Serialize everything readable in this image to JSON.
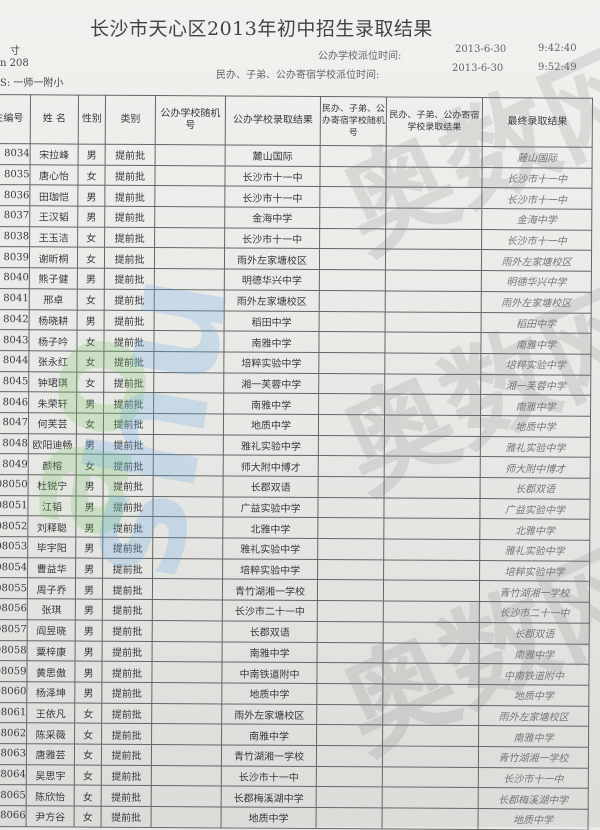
{
  "document": {
    "title": "长沙市天心区2013年初中招生录取结果",
    "fragments": [
      "寸",
      "n  208",
      "S: 一师一附小"
    ],
    "public_time_label": "公办学校派位时间:",
    "public_time_date": "2013-6-30",
    "public_time_clock": "9:42:40",
    "private_time_label": "民办、子弟、公办寄宿学校派位时间:",
    "private_time_date": "2013-6-30",
    "private_time_clock": "9:52:49"
  },
  "watermarks": [
    "ao",
    "shu",
    "奥数网",
    "奥数网",
    "奥数网"
  ],
  "table": {
    "headers": [
      "生编号",
      "姓 名",
      "性别",
      "类别",
      "公办学校随机号",
      "公办学校录取结果",
      "民办、子弟、公办寄宿学校随机号",
      "民办、子弟、公办寄宿学校录取结果",
      "最终录取结果"
    ],
    "rows": [
      [
        "8034",
        "宋拉峰",
        "男",
        "提前批",
        "",
        "麓山国际",
        "",
        "",
        "麓山国际"
      ],
      [
        "8035",
        "唐心怡",
        "女",
        "提前批",
        "",
        "长沙市十一中",
        "",
        "",
        "长沙市十一中"
      ],
      [
        "8036",
        "田珈恺",
        "男",
        "提前批",
        "",
        "长沙市十一中",
        "",
        "",
        "长沙市十一中"
      ],
      [
        "8037",
        "王汉韬",
        "男",
        "提前批",
        "",
        "金海中学",
        "",
        "",
        "金海中学"
      ],
      [
        "8038",
        "王玉洁",
        "女",
        "提前批",
        "",
        "长沙市十一中",
        "",
        "",
        "长沙市十一中"
      ],
      [
        "8039",
        "谢昕桐",
        "女",
        "提前批",
        "",
        "雨外左家塘校区",
        "",
        "",
        "雨外左家塘校区"
      ],
      [
        "8040",
        "熊子健",
        "男",
        "提前批",
        "",
        "明德华兴中学",
        "",
        "",
        "明德华兴中学"
      ],
      [
        "8041",
        "邢卓",
        "女",
        "提前批",
        "",
        "雨外左家塘校区",
        "",
        "",
        "雨外左家塘校区"
      ],
      [
        "8042",
        "杨晓耕",
        "男",
        "提前批",
        "",
        "稻田中学",
        "",
        "",
        "稻田中学"
      ],
      [
        "8043",
        "杨子吟",
        "女",
        "提前批",
        "",
        "南雅中学",
        "",
        "",
        "南雅中学"
      ],
      [
        "8044",
        "张永红",
        "女",
        "提前批",
        "",
        "培粹实验中学",
        "",
        "",
        "培粹实验中学"
      ],
      [
        "8045",
        "钟珺琪",
        "女",
        "提前批",
        "",
        "湘一芙蓉中学",
        "",
        "",
        "湘一芙蓉中学"
      ],
      [
        "8046",
        "朱荣轩",
        "男",
        "提前批",
        "",
        "南雅中学",
        "",
        "",
        "南雅中学"
      ],
      [
        "8047",
        "何芙芸",
        "女",
        "提前批",
        "",
        "地质中学",
        "",
        "",
        "地质中学"
      ],
      [
        "8048",
        "欧阳迪畅",
        "男",
        "提前批",
        "",
        "雅礼实验中学",
        "",
        "",
        "雅礼实验中学"
      ],
      [
        "8049",
        "颜榕",
        "女",
        "提前批",
        "",
        "师大附中博才",
        "",
        "",
        "师大附中博才"
      ],
      [
        "08050",
        "杜锐宁",
        "男",
        "提前批",
        "",
        "长郡双语",
        "",
        "",
        "长郡双语"
      ],
      [
        "08051",
        "江韬",
        "男",
        "提前批",
        "",
        "广益实验中学",
        "",
        "",
        "广益实验中学"
      ],
      [
        "08052",
        "刘释聪",
        "男",
        "提前批",
        "",
        "北雅中学",
        "",
        "",
        "北雅中学"
      ],
      [
        "08053",
        "毕宇阳",
        "男",
        "提前批",
        "",
        "雅礼实验中学",
        "",
        "",
        "雅礼实验中学"
      ],
      [
        "08054",
        "曹益华",
        "男",
        "提前批",
        "",
        "培粹实验中学",
        "",
        "",
        "培粹实验中学"
      ],
      [
        "08055",
        "周子乔",
        "男",
        "提前批",
        "",
        "青竹湖湘一学校",
        "",
        "",
        "青竹湖湘一学校"
      ],
      [
        "08056",
        "张琪",
        "男",
        "提前批",
        "",
        "长沙市二十一中",
        "",
        "",
        "长沙市二十一中"
      ],
      [
        "08057",
        "阎昱晓",
        "男",
        "提前批",
        "",
        "长郡双语",
        "",
        "",
        "长郡双语"
      ],
      [
        "08058",
        "粟梓康",
        "男",
        "提前批",
        "",
        "南雅中学",
        "",
        "",
        "南雅中学"
      ],
      [
        "08059",
        "黄思傲",
        "男",
        "提前批",
        "",
        "中南铁道附中",
        "",
        "",
        "中南铁道附中"
      ],
      [
        "08060",
        "杨泽坤",
        "男",
        "提前批",
        "",
        "地质中学",
        "",
        "",
        "地质中学"
      ],
      [
        "08061",
        "王依凡",
        "女",
        "提前批",
        "",
        "雨外左家塘校区",
        "",
        "",
        "雨外左家塘校区"
      ],
      [
        "08062",
        "陈采薇",
        "女",
        "提前批",
        "",
        "南雅中学",
        "",
        "",
        "南雅中学"
      ],
      [
        "08063",
        "唐雅芸",
        "女",
        "提前批",
        "",
        "青竹湖湘一学校",
        "",
        "",
        "青竹湖湘一学校"
      ],
      [
        "08064",
        "吴思宇",
        "女",
        "提前批",
        "",
        "长沙市十一中",
        "",
        "",
        "长沙市十一中"
      ],
      [
        "08065",
        "陈欣怡",
        "女",
        "提前批",
        "",
        "长郡梅溪湖中学",
        "",
        "",
        "长郡梅溪湖中学"
      ],
      [
        "08066",
        "尹方谷",
        "女",
        "提前批",
        "",
        "地质中学",
        "",
        "",
        "地质中学"
      ]
    ]
  }
}
